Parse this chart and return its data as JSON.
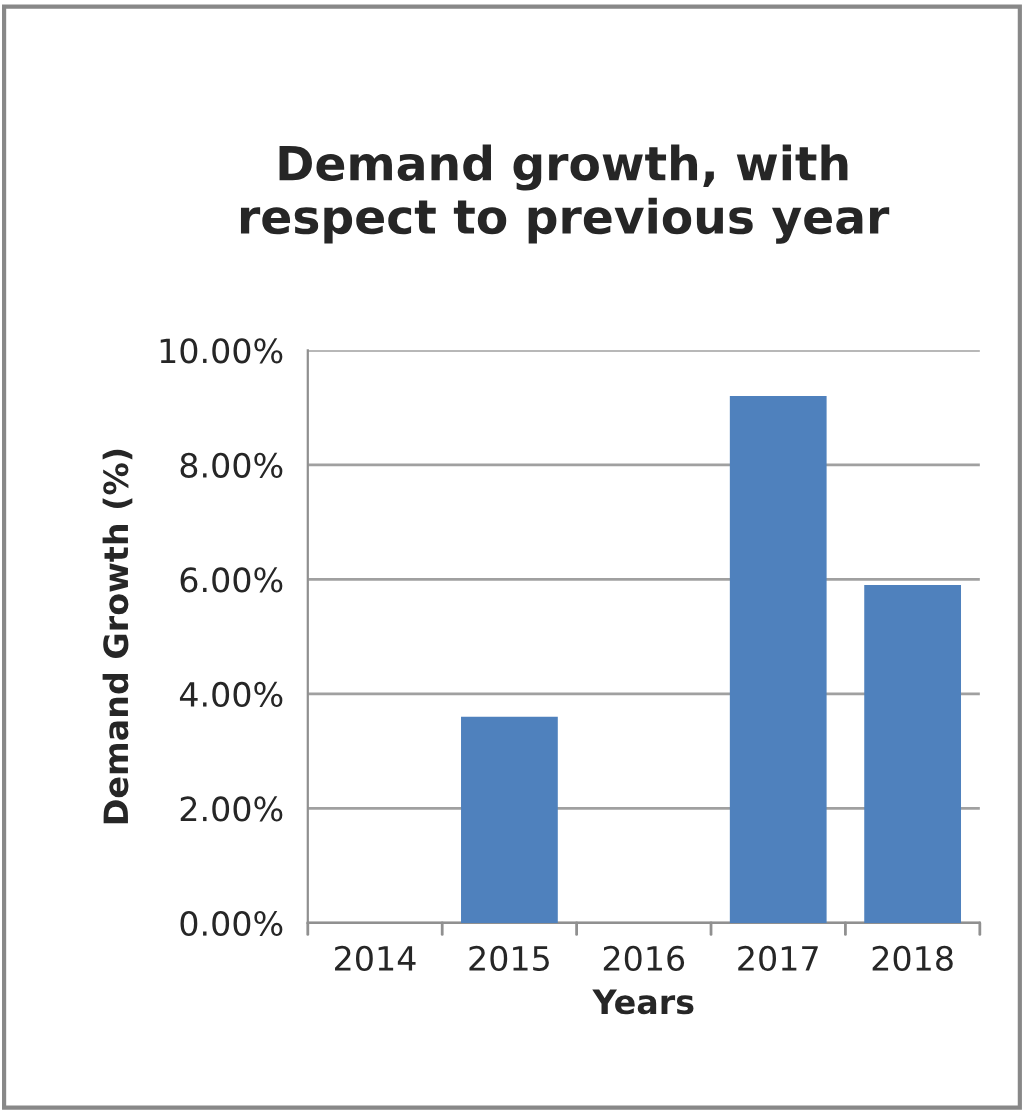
{
  "chart_data": {
    "type": "bar",
    "title": "Demand growth, with\nrespect to previous year",
    "xlabel": "Years",
    "ylabel": "Demand Growth (%)",
    "categories": [
      "2014",
      "2015",
      "2016",
      "2017",
      "2018"
    ],
    "values": [
      null,
      3.6,
      null,
      9.2,
      5.9
    ],
    "color": "#4f81bd",
    "ylim": [
      0,
      10
    ],
    "yticks": [
      {
        "value": 0,
        "label": "0.00%"
      },
      {
        "value": 2,
        "label": "2.00%"
      },
      {
        "value": 4,
        "label": "4.00%"
      },
      {
        "value": 6,
        "label": "6.00%"
      },
      {
        "value": 8,
        "label": "8.00%"
      },
      {
        "value": 10,
        "label": "10.00%"
      }
    ],
    "grid": "y",
    "legend": false
  }
}
